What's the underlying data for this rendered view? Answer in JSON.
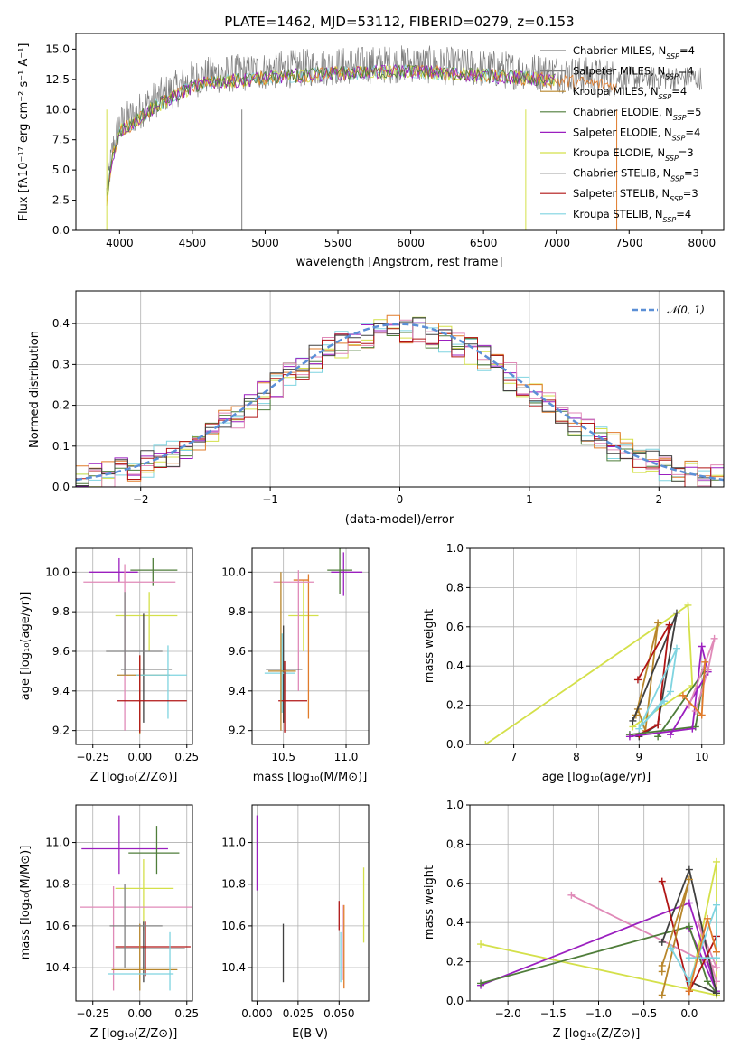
{
  "palette": {
    "Chabrier MILES": "#808080",
    "Salpeter MILES": "#7f7f7f",
    "Kroupa MILES": "#b8862b",
    "Chabrier ELODIE": "#4f7d3a",
    "Salpeter ELODIE": "#9b1fbf",
    "Kroupa ELODIE": "#d4e04a",
    "Chabrier STELIB": "#404040",
    "Salpeter STELIB": "#b01515",
    "Kroupa STELIB": "#7fd4e0",
    "extra_orange": "#e07b2a",
    "extra_pink": "#e08ab8",
    "normal_curve": "#5b8fd6"
  },
  "chart_data": [
    {
      "id": "spectrum",
      "type": "line",
      "title": "PLATE=1462, MJD=53112, FIBERID=0279, z=0.153",
      "xlabel": "wavelength [Angstrom, rest frame]",
      "ylabel": "Flux [fλ10⁻¹⁷ erg cm⁻² s⁻¹ A⁻¹]",
      "xlim": [
        3700,
        8150
      ],
      "ylim": [
        0,
        16.3
      ],
      "xticks": [
        "4000",
        "4500",
        "5000",
        "5500",
        "6000",
        "6500",
        "7000",
        "7500",
        "8000"
      ],
      "yticks": [
        "0.0",
        "2.5",
        "5.0",
        "7.5",
        "10.0",
        "12.5",
        "15.0"
      ],
      "continuum": {
        "x": [
          3910,
          3950,
          4000,
          4100,
          4200,
          4300,
          4400,
          4500,
          4600,
          4800,
          5000,
          5200,
          5500,
          6000,
          6500,
          7000,
          7400
        ],
        "y": [
          3.0,
          6.5,
          8.8,
          9.5,
          10.5,
          11.2,
          11.8,
          12.5,
          12.8,
          13.0,
          13.2,
          13.4,
          13.6,
          13.8,
          13.4,
          13.0,
          12.6
        ]
      },
      "legend": [
        {
          "name": "Chabrier MILES",
          "sub": "SSP",
          "n": "4"
        },
        {
          "name": "Salpeter MILES",
          "sub": "SSP",
          "n": "4"
        },
        {
          "name": "Kroupa MILES",
          "sub": "SSP",
          "n": "4"
        },
        {
          "name": "Chabrier ELODIE",
          "sub": "SSP",
          "n": "5"
        },
        {
          "name": "Salpeter ELODIE",
          "sub": "SSP",
          "n": "4"
        },
        {
          "name": "Kroupa ELODIE",
          "sub": "SSP",
          "n": "3"
        },
        {
          "name": "Chabrier STELIB",
          "sub": "SSP",
          "n": "3"
        },
        {
          "name": "Salpeter STELIB",
          "sub": "SSP",
          "n": "3"
        },
        {
          "name": "Kroupa STELIB",
          "sub": "SSP",
          "n": "4"
        }
      ],
      "legend_placement": "upper-right",
      "grid": false
    },
    {
      "id": "residuals",
      "type": "histogram",
      "xlabel": "(data-model)/error",
      "ylabel": "Normed distribution",
      "xlim": [
        -2.5,
        2.5
      ],
      "ylim": [
        0,
        0.48
      ],
      "xticks": [
        "−2",
        "−1",
        "0",
        "1",
        "2"
      ],
      "yticks": [
        "0.0",
        "0.1",
        "0.2",
        "0.3",
        "0.4"
      ],
      "legend": "𝒩(0, 1)",
      "legend_placement": "upper-right",
      "grid": true
    },
    {
      "id": "age_vs_Z",
      "type": "errorbar",
      "xlabel": "Z [log₁₀(Z/Z⊙)]",
      "ylabel": "age  [log₁₀(age/yr)]",
      "xlim": [
        -0.34,
        0.28
      ],
      "ylim": [
        9.13,
        10.12
      ],
      "xticks": [
        "−0.25",
        "0.00",
        "0.25"
      ],
      "yticks": [
        "9.2",
        "9.4",
        "9.6",
        "9.8",
        "10.0"
      ],
      "points": [
        {
          "c": "Salpeter ELODIE",
          "x": -0.11,
          "xe": [
            0.16,
            0.1
          ],
          "y": 10.0,
          "ye": [
            0.05,
            0.07
          ]
        },
        {
          "c": "Chabrier ELODIE",
          "x": 0.07,
          "xe": [
            0.12,
            0.13
          ],
          "y": 10.01,
          "ye": [
            0.08,
            0.06
          ]
        },
        {
          "c": "extra_pink",
          "x": -0.08,
          "xe": [
            0.22,
            0.27
          ],
          "y": 9.95,
          "ye": [
            0.75,
            0.09
          ]
        },
        {
          "c": "Kroupa ELODIE",
          "x": 0.05,
          "xe": [
            0.18,
            0.15
          ],
          "y": 9.78,
          "ye": [
            0.18,
            0.12
          ]
        },
        {
          "c": "Chabrier STELIB",
          "x": 0.02,
          "xe": [
            0.12,
            0.15
          ],
          "y": 9.51,
          "ye": [
            0.27,
            0.28
          ]
        },
        {
          "c": "Kroupa MILES",
          "x": 0.0,
          "xe": [
            0.12,
            0.16
          ],
          "y": 9.48,
          "ye": [
            0.3,
            0.1
          ]
        },
        {
          "c": "Kroupa STELIB",
          "x": 0.15,
          "xe": [
            0.17,
            0.1
          ],
          "y": 9.48,
          "ye": [
            0.22,
            0.15
          ]
        },
        {
          "c": "Salpeter STELIB",
          "x": 0.0,
          "xe": [
            0.12,
            0.25
          ],
          "y": 9.35,
          "ye": [
            0.16,
            0.23
          ]
        },
        {
          "c": "Chabrier MILES",
          "x": -0.08,
          "xe": [
            0.1,
            0.2
          ],
          "y": 9.6,
          "ye": [
            0.12,
            0.3
          ]
        }
      ],
      "grid": true
    },
    {
      "id": "age_vs_mass",
      "type": "errorbar",
      "xlabel": "mass [log₁₀(M/M⊙)]",
      "ylabel": "",
      "xlim": [
        10.25,
        11.18
      ],
      "ylim": [
        9.13,
        10.12
      ],
      "xticks": [
        "10.5",
        "11.0"
      ],
      "yticks": [
        "9.2",
        "9.4",
        "9.6",
        "9.8",
        "10.0"
      ],
      "points": [
        {
          "c": "Salpeter ELODIE",
          "x": 10.98,
          "xe": [
            0.1,
            0.15
          ],
          "y": 10.0,
          "ye": [
            0.12,
            0.1
          ]
        },
        {
          "c": "Chabrier ELODIE",
          "x": 10.95,
          "xe": [
            0.1,
            0.1
          ],
          "y": 10.01,
          "ye": [
            0.12,
            0.12
          ]
        },
        {
          "c": "Kroupa ELODIE",
          "x": 10.66,
          "xe": [
            0.12,
            0.12
          ],
          "y": 9.78,
          "ye": [
            0.18,
            0.18
          ]
        },
        {
          "c": "extra_orange",
          "x": 10.7,
          "xe": [
            0.12,
            0.0
          ],
          "y": 9.96,
          "ye": [
            0.7,
            0.03
          ]
        },
        {
          "c": "extra_pink",
          "x": 10.62,
          "xe": [
            0.2,
            0.12
          ],
          "y": 9.95,
          "ye": [
            0.55,
            0.06
          ]
        },
        {
          "c": "Chabrier STELIB",
          "x": 10.5,
          "xe": [
            0.14,
            0.15
          ],
          "y": 9.51,
          "ye": [
            0.27,
            0.22
          ]
        },
        {
          "c": "Kroupa STELIB",
          "x": 10.49,
          "xe": [
            0.14,
            0.1
          ],
          "y": 9.49,
          "ye": [
            0.2,
            0.2
          ]
        },
        {
          "c": "Salpeter STELIB",
          "x": 10.51,
          "xe": [
            0.05,
            0.18
          ],
          "y": 9.35,
          "ye": [
            0.16,
            0.2
          ]
        },
        {
          "c": "Kroupa MILES",
          "x": 10.48,
          "xe": [
            0.1,
            0.12
          ],
          "y": 9.5,
          "ye": [
            0.3,
            0.5
          ]
        }
      ],
      "grid": true
    },
    {
      "id": "weight_vs_age",
      "type": "line",
      "xlabel": "age  [log₁₀(age/yr)]",
      "ylabel": "mass weight",
      "xlim": [
        6.3,
        10.35
      ],
      "ylim": [
        0,
        1.0
      ],
      "xticks": [
        "7",
        "8",
        "9",
        "10"
      ],
      "yticks": [
        "0.0",
        "0.2",
        "0.4",
        "0.6",
        "0.8",
        "1.0"
      ],
      "series": [
        {
          "c": "Kroupa ELODIE",
          "x": [
            6.55,
            9.78,
            9.85,
            8.9
          ],
          "y": [
            0.0,
            0.71,
            0.3,
            0.09
          ]
        },
        {
          "c": "Kroupa MILES",
          "x": [
            8.95,
            9.3,
            9.1,
            8.98
          ],
          "y": [
            0.15,
            0.62,
            0.07,
            0.18
          ]
        },
        {
          "c": "Chabrier STELIB",
          "x": [
            8.9,
            9.6,
            9.3,
            9.0
          ],
          "y": [
            0.12,
            0.67,
            0.1,
            0.04
          ]
        },
        {
          "c": "Salpeter STELIB",
          "x": [
            8.98,
            9.48,
            9.3,
            9.0
          ],
          "y": [
            0.33,
            0.61,
            0.1,
            0.05
          ]
        },
        {
          "c": "Kroupa STELIB",
          "x": [
            9.0,
            9.6,
            9.5,
            9.05,
            9.4
          ],
          "y": [
            0.08,
            0.49,
            0.27,
            0.1,
            0.22
          ]
        },
        {
          "c": "Chabrier ELODIE",
          "x": [
            8.85,
            9.9,
            10.05,
            9.3
          ],
          "y": [
            0.05,
            0.09,
            0.38,
            0.04
          ]
        },
        {
          "c": "Salpeter ELODIE",
          "x": [
            8.85,
            9.85,
            10.0,
            10.1,
            9.5
          ],
          "y": [
            0.04,
            0.08,
            0.5,
            0.37,
            0.05
          ]
        },
        {
          "c": "extra_pink",
          "x": [
            9.8,
            10.2,
            10.1,
            9.9
          ],
          "y": [
            0.2,
            0.54,
            0.38,
            0.17
          ]
        },
        {
          "c": "extra_orange",
          "x": [
            9.7,
            10.0,
            10.05
          ],
          "y": [
            0.25,
            0.15,
            0.42
          ]
        }
      ],
      "grid": true
    },
    {
      "id": "mass_vs_Z",
      "type": "errorbar",
      "xlabel": "Z [log₁₀(Z/Z⊙)]",
      "ylabel": "mass [log₁₀(M/M⊙)]",
      "xlim": [
        -0.34,
        0.28
      ],
      "ylim": [
        10.24,
        11.18
      ],
      "xticks": [
        "−0.25",
        "0.00",
        "0.25"
      ],
      "yticks": [
        "10.4",
        "10.6",
        "10.8",
        "11.0"
      ],
      "points": [
        {
          "c": "Salpeter ELODIE",
          "x": -0.11,
          "xe": [
            0.2,
            0.26
          ],
          "y": 10.97,
          "ye": [
            0.12,
            0.16
          ]
        },
        {
          "c": "Chabrier ELODIE",
          "x": 0.09,
          "xe": [
            0.15,
            0.12
          ],
          "y": 10.95,
          "ye": [
            0.1,
            0.13
          ]
        },
        {
          "c": "Kroupa ELODIE",
          "x": 0.02,
          "xe": [
            0.15,
            0.16
          ],
          "y": 10.78,
          "ye": [
            0.2,
            0.14
          ]
        },
        {
          "c": "extra_pink",
          "x": -0.14,
          "xe": [
            0.18,
            0.42
          ],
          "y": 10.69,
          "ye": [
            0.4,
            0.1
          ]
        },
        {
          "c": "Chabrier STELIB",
          "x": 0.02,
          "xe": [
            0.15,
            0.22
          ],
          "y": 10.49,
          "ye": [
            0.16,
            0.13
          ]
        },
        {
          "c": "Salpeter STELIB",
          "x": 0.03,
          "xe": [
            0.16,
            0.24
          ],
          "y": 10.5,
          "ye": [
            0.14,
            0.12
          ]
        },
        {
          "c": "Kroupa MILES",
          "x": 0.0,
          "xe": [
            0.15,
            0.2
          ],
          "y": 10.39,
          "ye": [
            0.1,
            0.22
          ]
        },
        {
          "c": "Kroupa STELIB",
          "x": 0.16,
          "xe": [
            0.33,
            0.02
          ],
          "y": 10.37,
          "ye": [
            0.08,
            0.2
          ]
        },
        {
          "c": "Chabrier MILES",
          "x": -0.08,
          "xe": [
            0.08,
            0.2
          ],
          "y": 10.6,
          "ye": [
            0.2,
            0.2
          ]
        }
      ],
      "grid": true
    },
    {
      "id": "mass_vs_ebv",
      "type": "errorbar",
      "xlabel": "E(B-V)",
      "ylabel": "",
      "xlim": [
        -0.003,
        0.068
      ],
      "ylim": [
        10.24,
        11.18
      ],
      "xticks": [
        "0.000",
        "0.025",
        "0.050"
      ],
      "yticks": [
        "10.4",
        "10.6",
        "10.8",
        "11.0"
      ],
      "points": [
        {
          "c": "Salpeter ELODIE",
          "x": 0.0,
          "xe": [
            0,
            0
          ],
          "y": 10.95,
          "ye": [
            0.18,
            0.18
          ]
        },
        {
          "c": "Chabrier STELIB",
          "x": 0.016,
          "xe": [
            0,
            0
          ],
          "y": 10.47,
          "ye": [
            0.14,
            0.14
          ]
        },
        {
          "c": "Salpeter STELIB",
          "x": 0.05,
          "xe": [
            0,
            0
          ],
          "y": 10.65,
          "ye": [
            0.07,
            0.07
          ]
        },
        {
          "c": "Kroupa STELIB",
          "x": 0.051,
          "xe": [
            0,
            0
          ],
          "y": 10.45,
          "ye": [
            0.12,
            0.12
          ]
        },
        {
          "c": "extra_pink",
          "x": 0.052,
          "xe": [
            0,
            0
          ],
          "y": 10.52,
          "ye": [
            0.18,
            0.18
          ]
        },
        {
          "c": "extra_orange",
          "x": 0.053,
          "xe": [
            0,
            0
          ],
          "y": 10.5,
          "ye": [
            0.2,
            0.2
          ]
        },
        {
          "c": "Kroupa ELODIE",
          "x": 0.065,
          "xe": [
            0,
            0
          ],
          "y": 10.7,
          "ye": [
            0.18,
            0.18
          ]
        }
      ],
      "grid": true
    },
    {
      "id": "weight_vs_Z",
      "type": "line",
      "xlabel": "Z [log₁₀(Z/Z⊙)]",
      "ylabel": "mass weight",
      "xlim": [
        -2.42,
        0.38
      ],
      "ylim": [
        0,
        1.0
      ],
      "xticks": [
        "−2.0",
        "−1.5",
        "−1.0",
        "−0.5",
        "0.0"
      ],
      "yticks": [
        "0.0",
        "0.2",
        "0.4",
        "0.6",
        "0.8",
        "1.0"
      ],
      "series": [
        {
          "c": "Kroupa ELODIE",
          "x": [
            -2.3,
            0.3,
            0.3,
            0.0
          ],
          "y": [
            0.29,
            0.03,
            0.71,
            0.05
          ]
        },
        {
          "c": "extra_pink",
          "x": [
            -1.3,
            0.3,
            0.1,
            0.3
          ],
          "y": [
            0.54,
            0.17,
            0.4,
            0.1
          ]
        },
        {
          "c": "Salpeter ELODIE",
          "x": [
            -2.3,
            0.0,
            0.3,
            0.0
          ],
          "y": [
            0.08,
            0.5,
            0.05,
            0.37
          ]
        },
        {
          "c": "Chabrier ELODIE",
          "x": [
            -2.3,
            0.0,
            0.2,
            0.3
          ],
          "y": [
            0.09,
            0.38,
            0.1,
            0.04
          ]
        },
        {
          "c": "Chabrier STELIB",
          "x": [
            -0.3,
            0.0,
            0.3,
            0.0
          ],
          "y": [
            0.3,
            0.67,
            0.04,
            0.1
          ]
        },
        {
          "c": "Salpeter STELIB",
          "x": [
            -0.3,
            0.0,
            0.3,
            0.0
          ],
          "y": [
            0.61,
            0.05,
            0.33,
            0.05
          ]
        },
        {
          "c": "Kroupa MILES",
          "x": [
            -0.3,
            0.0,
            -0.3,
            -0.3
          ],
          "y": [
            0.03,
            0.62,
            0.18,
            0.15
          ]
        },
        {
          "c": "Kroupa STELIB",
          "x": [
            -0.2,
            0.0,
            0.3,
            0.3,
            0.0
          ],
          "y": [
            0.27,
            0.1,
            0.49,
            0.22,
            0.22
          ]
        },
        {
          "c": "extra_orange",
          "x": [
            0.0,
            0.2,
            0.3
          ],
          "y": [
            0.05,
            0.42,
            0.25
          ]
        }
      ],
      "grid": true
    }
  ]
}
